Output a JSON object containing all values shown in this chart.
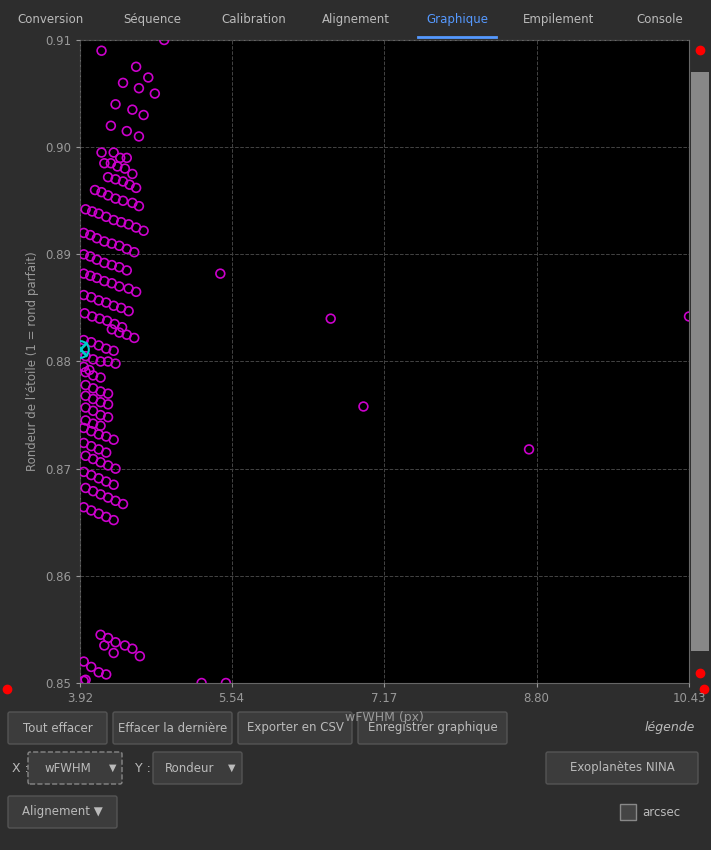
{
  "xlabel": "wFWHM (px)",
  "ylabel": "Rondeur de l’étoile (1 = rond parfait)",
  "xlim": [
    3.92,
    10.43
  ],
  "ylim": [
    0.85,
    0.91
  ],
  "xticks": [
    3.92,
    5.54,
    7.17,
    8.8,
    10.43
  ],
  "yticks": [
    0.85,
    0.86,
    0.87,
    0.88,
    0.89,
    0.9,
    0.91
  ],
  "plot_bg_color": "#000000",
  "text_color": "#999999",
  "marker_color": "#cc00cc",
  "cross_color": "#00cccc",
  "red_dot_color": "#ff0000",
  "nav_bg": "#3a3a3a",
  "ui_bg": "#2d2d2d",
  "btn_bg": "#3c3c3c",
  "btn_edge": "#555555",
  "scrollbar_bg": "#555555",
  "scrollbar_slider": "#888888",
  "tab_active_color": "#5599ff",
  "nav_text_color": "#bbbbbb",
  "points": [
    [
      4.82,
      0.91
    ],
    [
      4.15,
      0.909
    ],
    [
      4.52,
      0.9075
    ],
    [
      4.65,
      0.9065
    ],
    [
      4.38,
      0.906
    ],
    [
      4.55,
      0.9055
    ],
    [
      4.72,
      0.905
    ],
    [
      4.3,
      0.904
    ],
    [
      4.48,
      0.9035
    ],
    [
      4.6,
      0.903
    ],
    [
      4.25,
      0.902
    ],
    [
      4.42,
      0.9015
    ],
    [
      4.55,
      0.901
    ],
    [
      4.15,
      0.8995
    ],
    [
      4.28,
      0.8995
    ],
    [
      4.35,
      0.899
    ],
    [
      4.42,
      0.899
    ],
    [
      4.18,
      0.8985
    ],
    [
      4.25,
      0.8985
    ],
    [
      4.32,
      0.8982
    ],
    [
      4.4,
      0.898
    ],
    [
      4.48,
      0.8975
    ],
    [
      4.22,
      0.8972
    ],
    [
      4.3,
      0.897
    ],
    [
      4.38,
      0.8968
    ],
    [
      4.45,
      0.8965
    ],
    [
      4.52,
      0.8962
    ],
    [
      4.08,
      0.896
    ],
    [
      4.15,
      0.8958
    ],
    [
      4.22,
      0.8955
    ],
    [
      4.3,
      0.8952
    ],
    [
      4.38,
      0.895
    ],
    [
      4.48,
      0.8948
    ],
    [
      4.55,
      0.8945
    ],
    [
      3.98,
      0.8942
    ],
    [
      4.05,
      0.894
    ],
    [
      4.12,
      0.8938
    ],
    [
      4.2,
      0.8935
    ],
    [
      4.28,
      0.8932
    ],
    [
      4.36,
      0.893
    ],
    [
      4.44,
      0.8928
    ],
    [
      4.52,
      0.8925
    ],
    [
      4.6,
      0.8922
    ],
    [
      3.96,
      0.892
    ],
    [
      4.03,
      0.8918
    ],
    [
      4.1,
      0.8915
    ],
    [
      4.18,
      0.8912
    ],
    [
      4.26,
      0.891
    ],
    [
      4.34,
      0.8908
    ],
    [
      4.42,
      0.8905
    ],
    [
      4.5,
      0.8902
    ],
    [
      3.96,
      0.89
    ],
    [
      4.03,
      0.8898
    ],
    [
      4.1,
      0.8895
    ],
    [
      4.18,
      0.8892
    ],
    [
      4.26,
      0.889
    ],
    [
      4.34,
      0.8888
    ],
    [
      4.42,
      0.8885
    ],
    [
      5.42,
      0.8882
    ],
    [
      3.96,
      0.8882
    ],
    [
      4.03,
      0.888
    ],
    [
      4.1,
      0.8878
    ],
    [
      4.18,
      0.8875
    ],
    [
      4.26,
      0.8873
    ],
    [
      4.34,
      0.887
    ],
    [
      4.44,
      0.8868
    ],
    [
      4.52,
      0.8865
    ],
    [
      3.96,
      0.8862
    ],
    [
      4.04,
      0.886
    ],
    [
      4.12,
      0.8857
    ],
    [
      4.2,
      0.8855
    ],
    [
      4.28,
      0.8852
    ],
    [
      4.36,
      0.885
    ],
    [
      4.44,
      0.8847
    ],
    [
      3.97,
      0.8845
    ],
    [
      4.05,
      0.8842
    ],
    [
      4.13,
      0.884
    ],
    [
      4.21,
      0.8838
    ],
    [
      4.29,
      0.8835
    ],
    [
      4.37,
      0.8832
    ],
    [
      4.26,
      0.883
    ],
    [
      4.34,
      0.8827
    ],
    [
      4.42,
      0.8825
    ],
    [
      4.5,
      0.8822
    ],
    [
      3.96,
      0.882
    ],
    [
      4.04,
      0.8818
    ],
    [
      4.12,
      0.8815
    ],
    [
      4.2,
      0.8812
    ],
    [
      4.28,
      0.881
    ],
    [
      3.98,
      0.8805
    ],
    [
      4.06,
      0.8802
    ],
    [
      4.14,
      0.88
    ],
    [
      4.22,
      0.88
    ],
    [
      4.3,
      0.8798
    ],
    [
      3.96,
      0.8795
    ],
    [
      4.02,
      0.8792
    ],
    [
      3.98,
      0.879
    ],
    [
      4.06,
      0.8787
    ],
    [
      4.14,
      0.8785
    ],
    [
      6.6,
      0.884
    ],
    [
      6.95,
      0.8758
    ],
    [
      8.72,
      0.8718
    ],
    [
      10.43,
      0.8842
    ],
    [
      3.98,
      0.8778
    ],
    [
      4.06,
      0.8775
    ],
    [
      4.14,
      0.8772
    ],
    [
      4.22,
      0.877
    ],
    [
      3.98,
      0.8768
    ],
    [
      4.06,
      0.8765
    ],
    [
      4.14,
      0.8762
    ],
    [
      4.22,
      0.876
    ],
    [
      3.98,
      0.8757
    ],
    [
      4.06,
      0.8754
    ],
    [
      4.14,
      0.875
    ],
    [
      4.22,
      0.8748
    ],
    [
      3.98,
      0.8745
    ],
    [
      4.06,
      0.8742
    ],
    [
      4.14,
      0.874
    ],
    [
      3.96,
      0.8738
    ],
    [
      4.04,
      0.8735
    ],
    [
      4.12,
      0.8732
    ],
    [
      4.2,
      0.873
    ],
    [
      4.28,
      0.8727
    ],
    [
      3.96,
      0.8724
    ],
    [
      4.04,
      0.8721
    ],
    [
      4.12,
      0.8718
    ],
    [
      4.2,
      0.8715
    ],
    [
      3.98,
      0.8712
    ],
    [
      4.06,
      0.8709
    ],
    [
      4.14,
      0.8706
    ],
    [
      4.22,
      0.8703
    ],
    [
      4.3,
      0.87
    ],
    [
      3.96,
      0.8697
    ],
    [
      4.04,
      0.8694
    ],
    [
      4.12,
      0.8691
    ],
    [
      4.2,
      0.8688
    ],
    [
      4.28,
      0.8685
    ],
    [
      3.98,
      0.8682
    ],
    [
      4.06,
      0.8679
    ],
    [
      4.14,
      0.8676
    ],
    [
      4.22,
      0.8673
    ],
    [
      4.3,
      0.867
    ],
    [
      4.38,
      0.8667
    ],
    [
      3.96,
      0.8664
    ],
    [
      4.04,
      0.8661
    ],
    [
      4.12,
      0.8658
    ],
    [
      4.2,
      0.8655
    ],
    [
      4.28,
      0.8652
    ],
    [
      3.96,
      0.852
    ],
    [
      4.04,
      0.8515
    ],
    [
      4.12,
      0.851
    ],
    [
      4.2,
      0.8508
    ],
    [
      4.14,
      0.8545
    ],
    [
      4.22,
      0.8542
    ],
    [
      4.3,
      0.8538
    ],
    [
      4.4,
      0.8535
    ],
    [
      4.18,
      0.8535
    ],
    [
      4.48,
      0.8532
    ],
    [
      4.28,
      0.8528
    ],
    [
      4.56,
      0.8525
    ],
    [
      5.48,
      0.85
    ],
    [
      5.22,
      0.85
    ],
    [
      3.96,
      0.8502
    ],
    [
      3.98,
      0.8503
    ]
  ],
  "cross_point": [
    3.92,
    0.8812
  ],
  "nav_tabs": [
    "Conversion",
    "Séquence",
    "Calibration",
    "Alignement",
    "Graphique",
    "Empilement",
    "Console"
  ],
  "active_tab": "Graphique",
  "bottom_buttons": [
    "Tout effacer",
    "Effacer la dernière",
    "Exporter en CSV",
    "Enregistrer graphique"
  ],
  "legend_text": "légende",
  "x_dropdown": "wFWHM",
  "y_dropdown": "Rondeur",
  "right_button": "Exoplanètes NINA",
  "bottom_left": "Alignement",
  "bottom_right": "arcsec"
}
